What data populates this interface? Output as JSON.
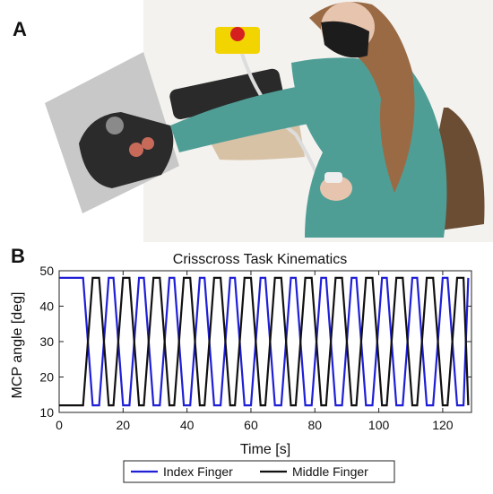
{
  "panels": {
    "a_label": "A",
    "b_label": "B"
  },
  "chart_data": {
    "type": "line",
    "title": "Crisscross Task Kinematics",
    "xlabel": "Time [s]",
    "ylabel": "MCP angle [deg]",
    "xlim": [
      0,
      129
    ],
    "ylim": [
      10,
      50
    ],
    "xticks": [
      0,
      20,
      40,
      60,
      80,
      100,
      120
    ],
    "yticks": [
      10,
      20,
      30,
      40,
      50
    ],
    "grid": false,
    "legend_placement": "bottom",
    "colors": {
      "index": "#1f1fd6",
      "middle": "#111111"
    },
    "series": [
      {
        "name": "Index Finger",
        "color": "#1f1fd6",
        "x": [
          0,
          7.5,
          10.5,
          12.5,
          15.5,
          17,
          20,
          22,
          25,
          26.5,
          29.5,
          31.5,
          34.5,
          36,
          39,
          41,
          44,
          45.5,
          48.5,
          50.5,
          53.5,
          55,
          58,
          60,
          63,
          64.5,
          67.5,
          69.5,
          72.5,
          74,
          77,
          79,
          82,
          83.5,
          86.5,
          88.5,
          91.5,
          93,
          96,
          98,
          101,
          102.5,
          105.5,
          107.5,
          110.5,
          112,
          115,
          117,
          120,
          121.5,
          124.5,
          126.5,
          128
        ],
        "y": [
          48,
          48,
          12,
          12,
          48,
          48,
          12,
          12,
          48,
          48,
          12,
          12,
          48,
          48,
          12,
          12,
          48,
          48,
          12,
          12,
          48,
          48,
          12,
          12,
          48,
          48,
          12,
          12,
          48,
          48,
          12,
          12,
          48,
          48,
          12,
          12,
          48,
          48,
          12,
          12,
          48,
          48,
          12,
          12,
          48,
          48,
          12,
          12,
          48,
          48,
          12,
          12,
          48
        ]
      },
      {
        "name": "Middle Finger",
        "color": "#111111",
        "x": [
          0,
          7.5,
          10.5,
          12.5,
          15.5,
          17,
          20,
          22,
          25,
          26.5,
          29.5,
          31.5,
          34.5,
          36,
          39,
          41,
          44,
          45.5,
          48.5,
          50.5,
          53.5,
          55,
          58,
          60,
          63,
          64.5,
          67.5,
          69.5,
          72.5,
          74,
          77,
          79,
          82,
          83.5,
          86.5,
          88.5,
          91.5,
          93,
          96,
          98,
          101,
          102.5,
          105.5,
          107.5,
          110.5,
          112,
          115,
          117,
          120,
          121.5,
          124.5,
          126.5,
          128
        ],
        "y": [
          12,
          12,
          48,
          48,
          12,
          12,
          48,
          48,
          12,
          12,
          48,
          48,
          12,
          12,
          48,
          48,
          12,
          12,
          48,
          48,
          12,
          12,
          48,
          48,
          12,
          12,
          48,
          48,
          12,
          12,
          48,
          48,
          12,
          12,
          48,
          48,
          12,
          12,
          48,
          48,
          12,
          12,
          48,
          48,
          12,
          12,
          48,
          48,
          12,
          12,
          48,
          48,
          12
        ]
      }
    ]
  }
}
